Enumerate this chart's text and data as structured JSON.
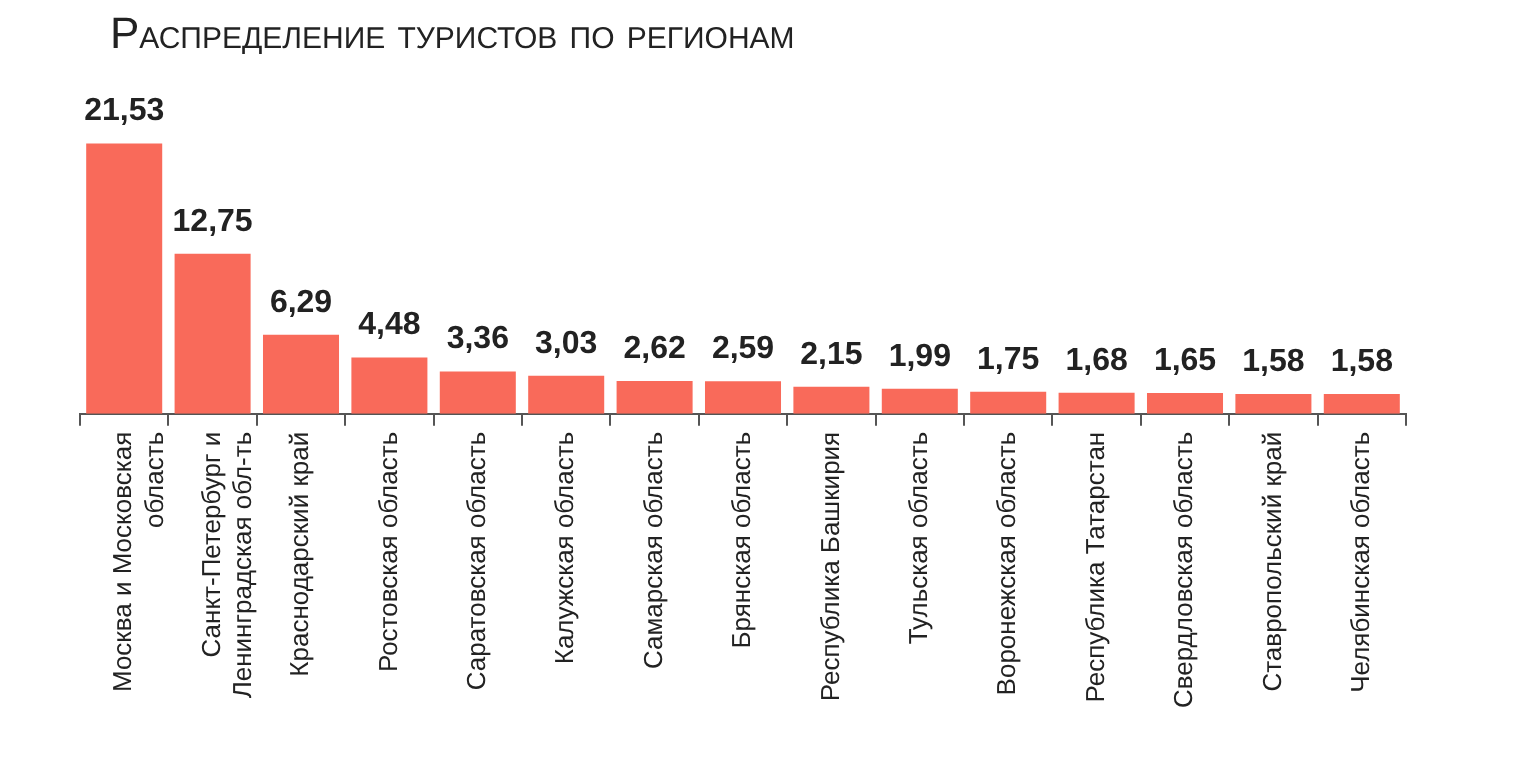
{
  "chart_data": {
    "type": "bar",
    "title": "Распределение туристов по регионам",
    "categories": [
      "Москва и Московская область",
      "Санкт-Петербург и Ленинградская обл-ть",
      "Краснодарский край",
      "Ростовская область",
      "Саратовская область",
      "Калужская область",
      "Самарская область",
      "Брянская область",
      "Республика Башкирия",
      "Тульская область",
      "Воронежская область",
      "Республика Татарстан",
      "Свердловская область",
      "Ставропольский край",
      "Челябинская область"
    ],
    "values": [
      21.53,
      12.75,
      6.29,
      4.48,
      3.36,
      3.03,
      2.62,
      2.59,
      2.15,
      1.99,
      1.75,
      1.68,
      1.65,
      1.58,
      1.58
    ],
    "value_labels": [
      "21,53",
      "12,75",
      "6,29",
      "4,48",
      "3,36",
      "3,03",
      "2,62",
      "2,59",
      "2,15",
      "1,99",
      "1,75",
      "1,68",
      "1,65",
      "1,58",
      "1,58"
    ],
    "color": "#f96a5a",
    "grid": false
  }
}
